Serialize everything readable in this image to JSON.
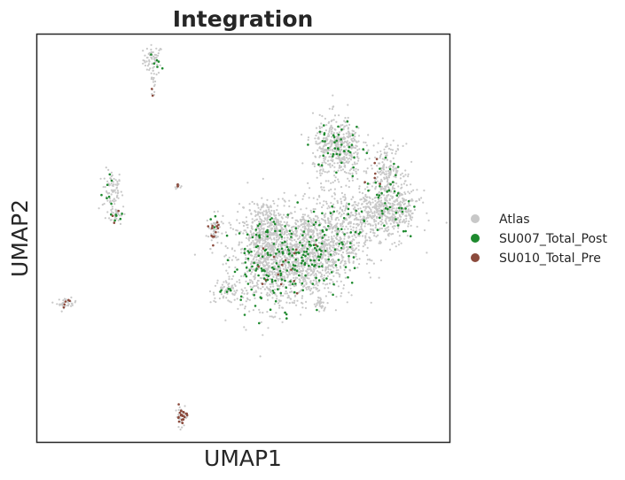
{
  "chart_data": {
    "type": "scatter",
    "title": "Integration",
    "xlabel": "UMAP1",
    "ylabel": "UMAP2",
    "xticks": false,
    "yticks": false,
    "grid": false,
    "legend_position": "right",
    "series": [
      {
        "name": "Atlas",
        "color": "#c8c8c8",
        "clusters": [
          {
            "x": 0.28,
            "y": 0.94,
            "sx": 0.012,
            "sy": 0.018,
            "n": 60
          },
          {
            "x": 0.28,
            "y": 0.88,
            "sx": 0.003,
            "sy": 0.02,
            "n": 15
          },
          {
            "x": 0.18,
            "y": 0.62,
            "sx": 0.012,
            "sy": 0.025,
            "n": 70
          },
          {
            "x": 0.19,
            "y": 0.56,
            "sx": 0.012,
            "sy": 0.012,
            "n": 35
          },
          {
            "x": 0.34,
            "y": 0.63,
            "sx": 0.004,
            "sy": 0.004,
            "n": 8
          },
          {
            "x": 0.43,
            "y": 0.52,
            "sx": 0.01,
            "sy": 0.02,
            "n": 50
          },
          {
            "x": 0.07,
            "y": 0.34,
            "sx": 0.012,
            "sy": 0.006,
            "n": 30
          },
          {
            "x": 0.35,
            "y": 0.06,
            "sx": 0.008,
            "sy": 0.012,
            "n": 30
          },
          {
            "x": 0.46,
            "y": 0.37,
            "sx": 0.02,
            "sy": 0.015,
            "n": 60
          },
          {
            "x": 0.57,
            "y": 0.45,
            "sx": 0.05,
            "sy": 0.06,
            "n": 900
          },
          {
            "x": 0.67,
            "y": 0.46,
            "sx": 0.05,
            "sy": 0.055,
            "n": 700
          },
          {
            "x": 0.56,
            "y": 0.53,
            "sx": 0.025,
            "sy": 0.03,
            "n": 200
          },
          {
            "x": 0.74,
            "y": 0.53,
            "sx": 0.04,
            "sy": 0.05,
            "n": 350
          },
          {
            "x": 0.73,
            "y": 0.72,
            "sx": 0.03,
            "sy": 0.04,
            "n": 450
          },
          {
            "x": 0.85,
            "y": 0.67,
            "sx": 0.02,
            "sy": 0.03,
            "n": 160
          },
          {
            "x": 0.87,
            "y": 0.57,
            "sx": 0.03,
            "sy": 0.035,
            "n": 300
          },
          {
            "x": 0.82,
            "y": 0.56,
            "sx": 0.025,
            "sy": 0.03,
            "n": 200
          },
          {
            "x": 0.65,
            "y": 0.54,
            "sx": 0.008,
            "sy": 0.008,
            "n": 20
          },
          {
            "x": 0.69,
            "y": 0.34,
            "sx": 0.008,
            "sy": 0.008,
            "n": 25
          }
        ]
      },
      {
        "name": "SU007_Total_Post",
        "color": "#1e8a2e",
        "clusters": [
          {
            "x": 0.28,
            "y": 0.94,
            "sx": 0.01,
            "sy": 0.015,
            "n": 6
          },
          {
            "x": 0.18,
            "y": 0.62,
            "sx": 0.01,
            "sy": 0.02,
            "n": 7
          },
          {
            "x": 0.19,
            "y": 0.56,
            "sx": 0.01,
            "sy": 0.01,
            "n": 6
          },
          {
            "x": 0.43,
            "y": 0.54,
            "sx": 0.006,
            "sy": 0.012,
            "n": 3
          },
          {
            "x": 0.46,
            "y": 0.37,
            "sx": 0.012,
            "sy": 0.008,
            "n": 6
          },
          {
            "x": 0.57,
            "y": 0.44,
            "sx": 0.05,
            "sy": 0.055,
            "n": 120
          },
          {
            "x": 0.67,
            "y": 0.47,
            "sx": 0.045,
            "sy": 0.05,
            "n": 90
          },
          {
            "x": 0.73,
            "y": 0.72,
            "sx": 0.03,
            "sy": 0.035,
            "n": 45
          },
          {
            "x": 0.85,
            "y": 0.66,
            "sx": 0.02,
            "sy": 0.03,
            "n": 14
          },
          {
            "x": 0.86,
            "y": 0.57,
            "sx": 0.03,
            "sy": 0.03,
            "n": 28
          },
          {
            "x": 0.74,
            "y": 0.54,
            "sx": 0.03,
            "sy": 0.04,
            "n": 25
          }
        ]
      },
      {
        "name": "SU010_Total_Pre",
        "color": "#8b4a3c",
        "clusters": [
          {
            "x": 0.35,
            "y": 0.06,
            "sx": 0.006,
            "sy": 0.01,
            "n": 25
          },
          {
            "x": 0.43,
            "y": 0.52,
            "sx": 0.008,
            "sy": 0.018,
            "n": 12
          },
          {
            "x": 0.07,
            "y": 0.34,
            "sx": 0.01,
            "sy": 0.005,
            "n": 5
          },
          {
            "x": 0.34,
            "y": 0.63,
            "sx": 0.003,
            "sy": 0.003,
            "n": 3
          },
          {
            "x": 0.28,
            "y": 0.87,
            "sx": 0.003,
            "sy": 0.01,
            "n": 2
          },
          {
            "x": 0.58,
            "y": 0.43,
            "sx": 0.04,
            "sy": 0.04,
            "n": 15
          },
          {
            "x": 0.82,
            "y": 0.65,
            "sx": 0.02,
            "sy": 0.03,
            "n": 6
          },
          {
            "x": 0.19,
            "y": 0.55,
            "sx": 0.008,
            "sy": 0.008,
            "n": 3
          }
        ]
      }
    ]
  }
}
